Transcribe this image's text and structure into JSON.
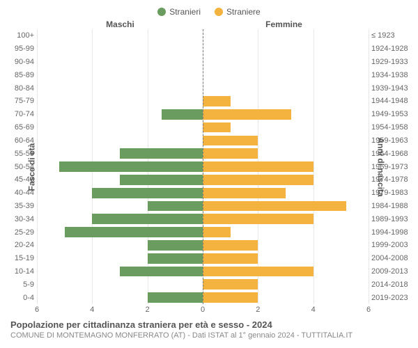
{
  "legend": {
    "male": {
      "label": "Stranieri",
      "color": "#6a9c5f"
    },
    "female": {
      "label": "Straniere",
      "color": "#f3b33e"
    }
  },
  "headers": {
    "male": "Maschi",
    "female": "Femmine"
  },
  "axis_titles": {
    "left": "Fasce di età",
    "right": "Anni di nascita"
  },
  "chart": {
    "type": "population-pyramid",
    "xmax": 6,
    "xticks_left": [
      6,
      4,
      2,
      0
    ],
    "xticks_right": [
      0,
      2,
      4,
      6
    ],
    "background_color": "#ffffff",
    "grid_color": "#e8e8e8",
    "center_line_color": "#777777",
    "bar_gap_pct": 12
  },
  "rows": [
    {
      "age": "100+",
      "birth": "≤ 1923",
      "m": 0,
      "f": 0
    },
    {
      "age": "95-99",
      "birth": "1924-1928",
      "m": 0,
      "f": 0
    },
    {
      "age": "90-94",
      "birth": "1929-1933",
      "m": 0,
      "f": 0
    },
    {
      "age": "85-89",
      "birth": "1934-1938",
      "m": 0,
      "f": 0
    },
    {
      "age": "80-84",
      "birth": "1939-1943",
      "m": 0,
      "f": 0
    },
    {
      "age": "75-79",
      "birth": "1944-1948",
      "m": 0,
      "f": 1
    },
    {
      "age": "70-74",
      "birth": "1949-1953",
      "m": 1.5,
      "f": 3.2
    },
    {
      "age": "65-69",
      "birth": "1954-1958",
      "m": 0,
      "f": 1
    },
    {
      "age": "60-64",
      "birth": "1959-1963",
      "m": 0,
      "f": 2
    },
    {
      "age": "55-59",
      "birth": "1964-1968",
      "m": 3,
      "f": 2
    },
    {
      "age": "50-54",
      "birth": "1969-1973",
      "m": 5.2,
      "f": 4
    },
    {
      "age": "45-49",
      "birth": "1974-1978",
      "m": 3,
      "f": 4
    },
    {
      "age": "40-44",
      "birth": "1979-1983",
      "m": 4,
      "f": 3
    },
    {
      "age": "35-39",
      "birth": "1984-1988",
      "m": 2,
      "f": 5.2
    },
    {
      "age": "30-34",
      "birth": "1989-1993",
      "m": 4,
      "f": 4
    },
    {
      "age": "25-29",
      "birth": "1994-1998",
      "m": 5,
      "f": 1
    },
    {
      "age": "20-24",
      "birth": "1999-2003",
      "m": 2,
      "f": 2
    },
    {
      "age": "15-19",
      "birth": "2004-2008",
      "m": 2,
      "f": 2
    },
    {
      "age": "10-14",
      "birth": "2009-2013",
      "m": 3,
      "f": 4
    },
    {
      "age": "5-9",
      "birth": "2014-2018",
      "m": 0,
      "f": 2
    },
    {
      "age": "0-4",
      "birth": "2019-2023",
      "m": 2,
      "f": 2
    }
  ],
  "footer": {
    "title": "Popolazione per cittadinanza straniera per età e sesso - 2024",
    "subtitle": "COMUNE DI MONTEMAGNO MONFERRATO (AT) - Dati ISTAT al 1° gennaio 2024 - TUTTITALIA.IT"
  }
}
